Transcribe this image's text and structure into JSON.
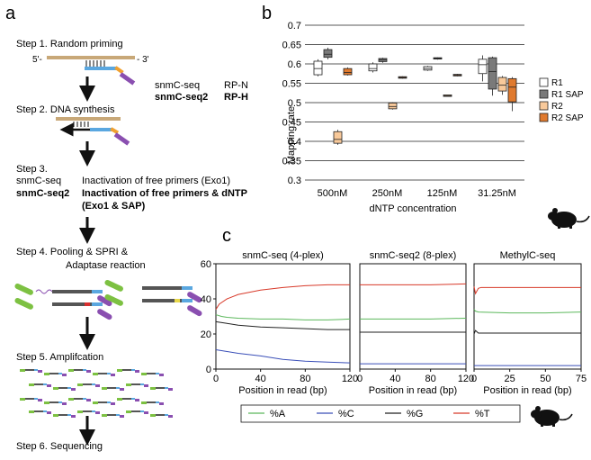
{
  "panels": {
    "a": {
      "label": "a",
      "steps": [
        {
          "title": "Step 1. Random priming"
        },
        {
          "title": "Step 2. DNA synthesis"
        },
        {
          "title": "Step 3."
        },
        {
          "title": "Step 4. Pooling & SPRI &"
        },
        {
          "title": "Step 5. Amplifcation"
        },
        {
          "title": "Step 6. Sequencing"
        }
      ],
      "step1": {
        "five_prime": "5'-",
        "three_prime": "- 3'",
        "snmc_label": "snmC-seq",
        "snmc_primer": "RP-N",
        "snmc2_label": "snmC-seq2",
        "snmc2_primer": "RP-H"
      },
      "step3": {
        "snmc_label": "snmC-seq",
        "snmc_text": "Inactivation of free primers (Exo1)",
        "snmc2_label": "snmC-seq2",
        "snmc2_text": "Inactivation of free primers & dNTP",
        "snmc2_text2": "(Exo1 & SAP)"
      },
      "step4_line2": "Adaptase reaction",
      "colors": {
        "blue": "#5aa7e0",
        "orange": "#f0a030",
        "purple": "#8a4fb0",
        "green": "#7dc142",
        "red": "#d83030",
        "yellow": "#e8d84a",
        "tan": "#c8a878"
      }
    },
    "b": {
      "label": "b",
      "chart_data": {
        "type": "box",
        "ylabel": "Mapping rate",
        "xlabel": "dNTP concentration",
        "ylim": [
          0.3,
          0.7
        ],
        "yticks": [
          "0.7",
          "0.65",
          "0.6",
          "0.55",
          "0.5",
          "0.45",
          "0.4",
          "0.35",
          "0.3"
        ],
        "grid": true,
        "legend_position": "right",
        "categories": [
          "500nM",
          "250nM",
          "125nM",
          "31.25nM"
        ],
        "series": [
          {
            "name": "R1",
            "color": "#ffffff",
            "boxes": [
              {
                "min": 0.568,
                "q1": 0.572,
                "median": 0.588,
                "q3": 0.607,
                "max": 0.612
              },
              {
                "min": 0.578,
                "q1": 0.582,
                "median": 0.588,
                "q3": 0.6,
                "max": 0.604
              },
              {
                "min": 0.582,
                "q1": 0.584,
                "median": 0.588,
                "q3": 0.593,
                "max": 0.595
              },
              {
                "min": 0.555,
                "q1": 0.575,
                "median": 0.598,
                "q3": 0.612,
                "max": 0.622
              }
            ]
          },
          {
            "name": "R1 SAP",
            "color": "#7a7a7a",
            "boxes": [
              {
                "min": 0.612,
                "q1": 0.617,
                "median": 0.625,
                "q3": 0.637,
                "max": 0.642
              },
              {
                "min": 0.603,
                "q1": 0.606,
                "median": 0.611,
                "q3": 0.614,
                "max": 0.616
              },
              {
                "min": 0.611,
                "q1": 0.613,
                "median": 0.614,
                "q3": 0.616,
                "max": 0.617
              },
              {
                "min": 0.518,
                "q1": 0.535,
                "median": 0.58,
                "q3": 0.616,
                "max": 0.619
              }
            ]
          },
          {
            "name": "R2",
            "color": "#f8c99a",
            "boxes": [
              {
                "min": 0.391,
                "q1": 0.395,
                "median": 0.405,
                "q3": 0.425,
                "max": 0.43
              },
              {
                "min": 0.482,
                "q1": 0.484,
                "median": 0.49,
                "q3": 0.499,
                "max": 0.501
              },
              {
                "min": 0.515,
                "q1": 0.516,
                "median": 0.518,
                "q3": 0.52,
                "max": 0.521
              },
              {
                "min": 0.52,
                "q1": 0.53,
                "median": 0.545,
                "q3": 0.565,
                "max": 0.569
              }
            ]
          },
          {
            "name": "R2 SAP",
            "color": "#e07a2e",
            "boxes": [
              {
                "min": 0.57,
                "q1": 0.572,
                "median": 0.578,
                "q3": 0.588,
                "max": 0.591
              },
              {
                "min": 0.562,
                "q1": 0.563,
                "median": 0.565,
                "q3": 0.567,
                "max": 0.568
              },
              {
                "min": 0.568,
                "q1": 0.569,
                "median": 0.571,
                "q3": 0.573,
                "max": 0.574
              },
              {
                "min": 0.478,
                "q1": 0.502,
                "median": 0.54,
                "q3": 0.562,
                "max": 0.566
              }
            ]
          }
        ]
      }
    },
    "c": {
      "label": "c",
      "chart_data": [
        {
          "type": "line",
          "title": "snmC-seq (4-plex)",
          "xlabel": "Position in read (bp)",
          "xlim": [
            0,
            120
          ],
          "xticks": [
            0,
            40,
            80,
            120
          ],
          "ylim": [
            0,
            60
          ],
          "yticks": [
            0,
            20,
            40,
            60
          ],
          "series": [
            {
              "name": "%A",
              "color": "#5cb85c",
              "x": [
                0,
                5,
                10,
                20,
                40,
                60,
                80,
                100,
                120
              ],
              "y": [
                31,
                30,
                29.5,
                29,
                28.5,
                28.5,
                28,
                28,
                28.5
              ]
            },
            {
              "name": "%C",
              "color": "#3a4fb8",
              "x": [
                0,
                10,
                20,
                40,
                60,
                80,
                100,
                120
              ],
              "y": [
                11,
                10,
                9,
                7.5,
                5.5,
                4.5,
                4,
                3.5
              ]
            },
            {
              "name": "%G",
              "color": "#222222",
              "x": [
                0,
                10,
                20,
                40,
                60,
                80,
                100,
                120
              ],
              "y": [
                27,
                26,
                25,
                24,
                23.5,
                23,
                22.5,
                22.5
              ]
            },
            {
              "name": "%T",
              "color": "#d83a2a",
              "x": [
                0,
                3,
                10,
                20,
                40,
                60,
                80,
                100,
                120
              ],
              "y": [
                34,
                37,
                40,
                42.5,
                45,
                46.5,
                47.5,
                48,
                48
              ]
            }
          ]
        },
        {
          "type": "line",
          "title": "snmC-seq2 (8-plex)",
          "xlabel": "Position in read (bp)",
          "xlim": [
            0,
            120
          ],
          "xticks": [
            0,
            40,
            80,
            120
          ],
          "ylim": [
            0,
            60
          ],
          "series": [
            {
              "name": "%A",
              "color": "#5cb85c",
              "x": [
                0,
                40,
                80,
                120
              ],
              "y": [
                28.5,
                28.5,
                28.5,
                29
              ]
            },
            {
              "name": "%C",
              "color": "#3a4fb8",
              "x": [
                0,
                40,
                80,
                120
              ],
              "y": [
                3,
                3,
                3,
                3
              ]
            },
            {
              "name": "%G",
              "color": "#222222",
              "x": [
                0,
                40,
                80,
                120
              ],
              "y": [
                21,
                21,
                21,
                21
              ]
            },
            {
              "name": "%T",
              "color": "#d83a2a",
              "x": [
                0,
                40,
                80,
                120
              ],
              "y": [
                48,
                48,
                48,
                48.5
              ]
            }
          ]
        },
        {
          "type": "line",
          "title": "MethylC-seq",
          "xlabel": "Position in read (bp)",
          "xlim": [
            0,
            75
          ],
          "xticks": [
            0,
            25,
            50,
            75
          ],
          "ylim": [
            0,
            60
          ],
          "series": [
            {
              "name": "%A",
              "color": "#5cb85c",
              "x": [
                0,
                1,
                3,
                25,
                50,
                75
              ],
              "y": [
                34,
                33,
                32.5,
                32,
                32,
                32.5
              ]
            },
            {
              "name": "%C",
              "color": "#3a4fb8",
              "x": [
                0,
                75
              ],
              "y": [
                2,
                2
              ]
            },
            {
              "name": "%G",
              "color": "#222222",
              "x": [
                0,
                1,
                3,
                25,
                50,
                75
              ],
              "y": [
                20,
                22,
                20.5,
                20.5,
                20.5,
                20.5
              ]
            },
            {
              "name": "%T",
              "color": "#d83a2a",
              "x": [
                0,
                1,
                3,
                5,
                25,
                50,
                75
              ],
              "y": [
                47,
                43,
                46,
                46.5,
                46.5,
                46.5,
                46.5
              ]
            }
          ]
        }
      ]
    }
  }
}
